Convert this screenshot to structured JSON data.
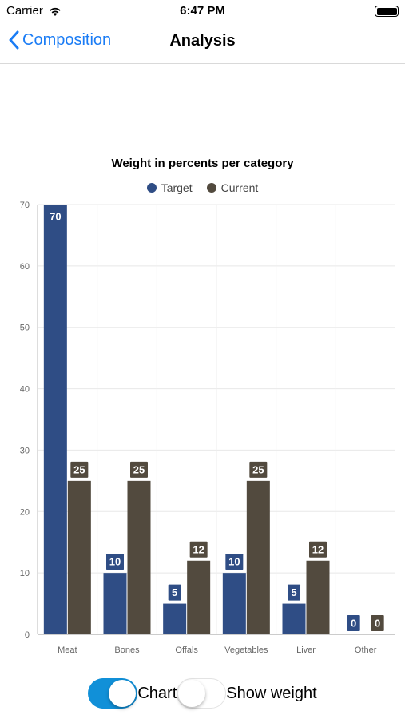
{
  "status_bar": {
    "carrier": "Carrier",
    "time": "6:47 PM"
  },
  "nav": {
    "back_label": "Composition",
    "title": "Analysis"
  },
  "colors": {
    "accent": "#1a7cf5",
    "target": "#2f4d85",
    "current": "#524a3e",
    "toggle_on": "#1190d8"
  },
  "toggles": {
    "chart": {
      "label": "Chart",
      "on": true
    },
    "show_weight": {
      "label": "Show weight",
      "on": false
    }
  },
  "chart_data": {
    "type": "bar",
    "title": "Weight in percents per category",
    "categories": [
      "Meat",
      "Bones",
      "Offals",
      "Vegetables",
      "Liver",
      "Other"
    ],
    "series": [
      {
        "name": "Target",
        "values": [
          70,
          10,
          5,
          10,
          5,
          0
        ]
      },
      {
        "name": "Current",
        "values": [
          25,
          25,
          12,
          25,
          12,
          0
        ]
      }
    ],
    "yticks": [
      0,
      10,
      20,
      30,
      40,
      50,
      60,
      70
    ],
    "ylim": [
      0,
      70
    ],
    "grid": true,
    "legend": "top-center",
    "xlabel": "",
    "ylabel": ""
  }
}
